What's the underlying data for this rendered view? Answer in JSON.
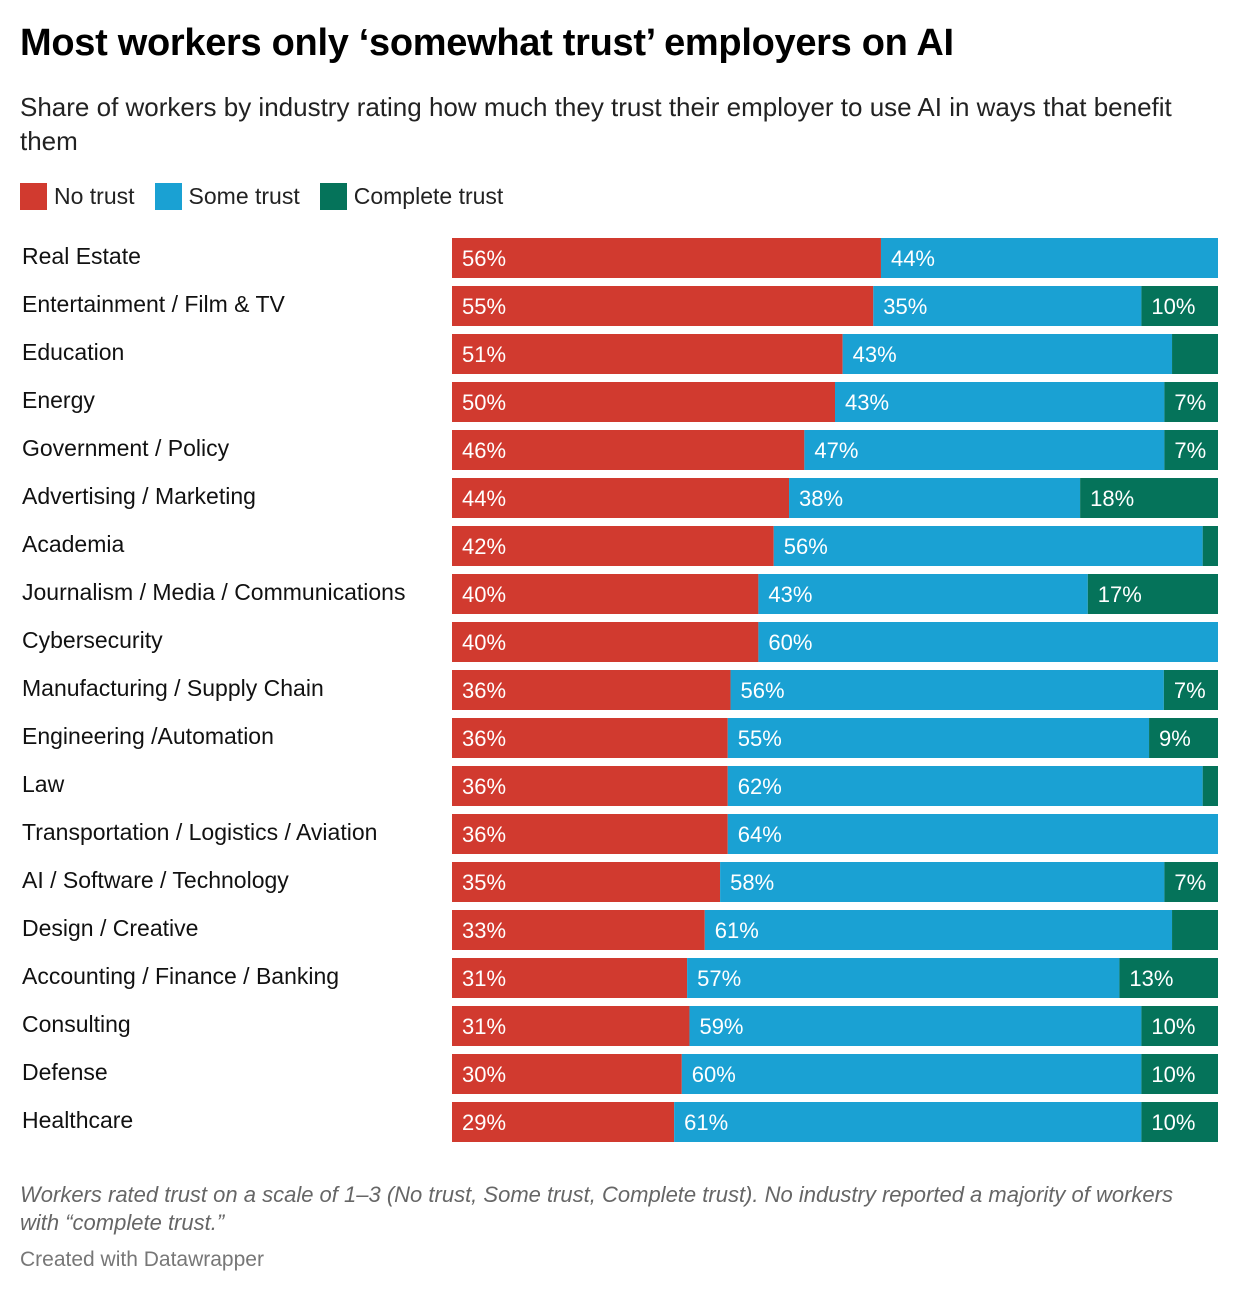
{
  "header": {
    "title": "Most workers only ‘somewhat trust’ employers on AI",
    "subtitle": "Share of workers by industry rating how much they trust their employer to use AI in ways that benefit them"
  },
  "legend": {
    "items": [
      {
        "label": "No trust",
        "color": "#d13a2f"
      },
      {
        "label": "Some trust",
        "color": "#1aa1d3"
      },
      {
        "label": "Complete trust",
        "color": "#05735a"
      }
    ]
  },
  "chart_data": {
    "type": "bar",
    "orientation": "horizontal",
    "stacked": true,
    "xlim": [
      0,
      100
    ],
    "categories": [
      "Real Estate",
      "Entertainment / Film & TV",
      "Education",
      "Energy",
      "Government / Policy",
      "Advertising / Marketing",
      "Academia",
      "Journalism / Media / Communications",
      "Cybersecurity",
      "Manufacturing / Supply Chain",
      "Engineering /Automation",
      "Law",
      "Transportation / Logistics / Aviation",
      "AI / Software / Technology",
      "Design / Creative",
      "Accounting / Finance / Banking",
      "Consulting",
      "Defense",
      "Healthcare"
    ],
    "series": [
      {
        "name": "No trust",
        "color": "#d13a2f",
        "values": [
          56,
          55,
          51,
          50,
          46,
          44,
          42,
          40,
          40,
          36,
          36,
          36,
          36,
          35,
          33,
          31,
          31,
          30,
          29
        ],
        "labels": [
          "56%",
          "55%",
          "51%",
          "50%",
          "46%",
          "44%",
          "42%",
          "40%",
          "40%",
          "36%",
          "36%",
          "36%",
          "36%",
          "35%",
          "33%",
          "31%",
          "31%",
          "30%",
          "29%"
        ]
      },
      {
        "name": "Some trust",
        "color": "#1aa1d3",
        "values": [
          44,
          35,
          43,
          43,
          47,
          38,
          56,
          43,
          60,
          56,
          55,
          62,
          64,
          58,
          61,
          57,
          59,
          60,
          61
        ],
        "labels": [
          "44%",
          "35%",
          "43%",
          "43%",
          "47%",
          "38%",
          "56%",
          "43%",
          "60%",
          "56%",
          "55%",
          "62%",
          "64%",
          "58%",
          "61%",
          "57%",
          "59%",
          "60%",
          "61%"
        ]
      },
      {
        "name": "Complete trust",
        "color": "#05735a",
        "values": [
          0,
          10,
          6,
          7,
          7,
          18,
          2,
          17,
          0,
          7,
          9,
          2,
          0,
          7,
          6,
          13,
          10,
          10,
          10
        ],
        "labels": [
          "",
          "10%",
          "",
          "7%",
          "7%",
          "18%",
          "",
          "17%",
          "",
          "7%",
          "9%",
          "",
          "",
          "7%",
          "",
          "13%",
          "10%",
          "10%",
          "10%"
        ]
      }
    ]
  },
  "footer": {
    "note": "Workers rated trust on a scale of 1–3 (No trust, Some trust, Complete trust). No industry reported a majority of workers with “complete trust.”",
    "credit": "Created with Datawrapper"
  }
}
